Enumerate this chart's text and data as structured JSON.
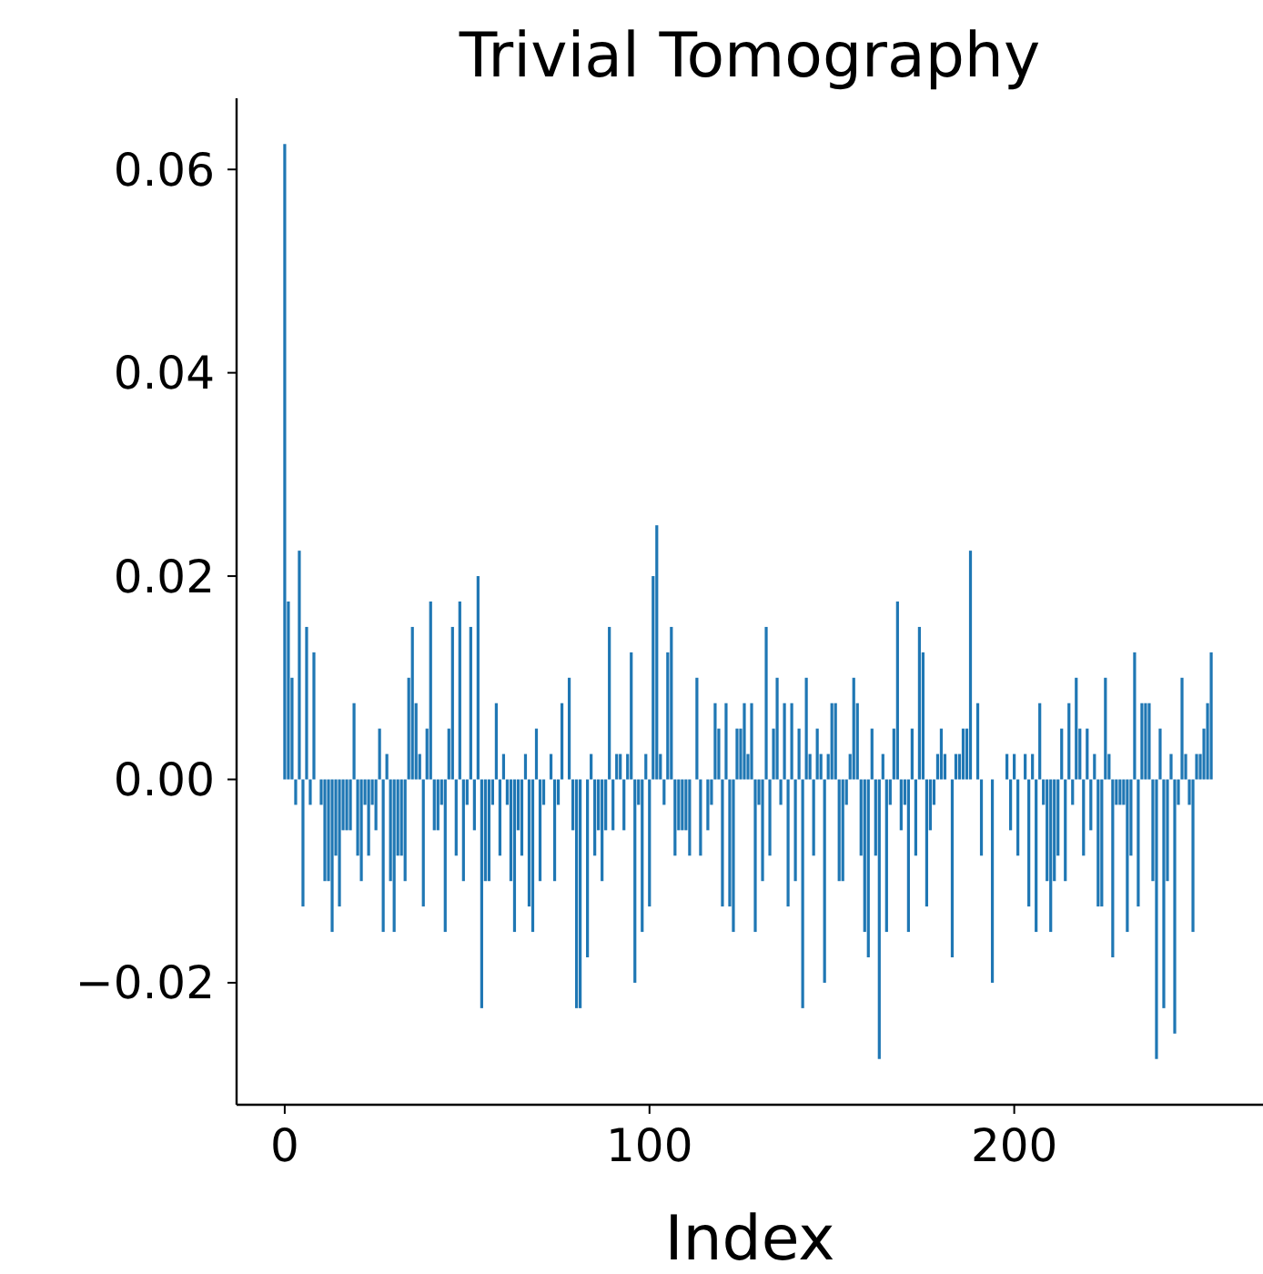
{
  "chart_data": {
    "type": "bar",
    "title": "Trivial Tomography",
    "xlabel": "Index",
    "color": "#1f77b4",
    "x": [
      0,
      1,
      2,
      3,
      4,
      5,
      6,
      7,
      8,
      9,
      10,
      11,
      12,
      13,
      14,
      15,
      16,
      17,
      18,
      19,
      20,
      21,
      22,
      23,
      24,
      25,
      26,
      27,
      28,
      29,
      30,
      31,
      32,
      33,
      34,
      35,
      36,
      37,
      38,
      39,
      40,
      41,
      42,
      43,
      44,
      45,
      46,
      47,
      48,
      49,
      50,
      51,
      52,
      53,
      54,
      55,
      56,
      57,
      58,
      59,
      60,
      61,
      62,
      63,
      64,
      65,
      66,
      67,
      68,
      69,
      70,
      71,
      72,
      73,
      74,
      75,
      76,
      77,
      78,
      79,
      80,
      81,
      82,
      83,
      84,
      85,
      86,
      87,
      88,
      89,
      90,
      91,
      92,
      93,
      94,
      95,
      96,
      97,
      98,
      99,
      100,
      101,
      102,
      103,
      104,
      105,
      106,
      107,
      108,
      109,
      110,
      111,
      112,
      113,
      114,
      115,
      116,
      117,
      118,
      119,
      120,
      121,
      122,
      123,
      124,
      125,
      126,
      127,
      128,
      129,
      130,
      131,
      132,
      133,
      134,
      135,
      136,
      137,
      138,
      139,
      140,
      141,
      142,
      143,
      144,
      145,
      146,
      147,
      148,
      149,
      150,
      151,
      152,
      153,
      154,
      155,
      156,
      157,
      158,
      159,
      160,
      161,
      162,
      163,
      164,
      165,
      166,
      167,
      168,
      169,
      170,
      171,
      172,
      173,
      174,
      175,
      176,
      177,
      178,
      179,
      180,
      181,
      182,
      183,
      184,
      185,
      186,
      187,
      188,
      189,
      190,
      191,
      192,
      193,
      194,
      195,
      196,
      197,
      198,
      199,
      200,
      201,
      202,
      203,
      204,
      205,
      206,
      207,
      208,
      209,
      210,
      211,
      212,
      213,
      214,
      215,
      216,
      217,
      218,
      219,
      220,
      221,
      222,
      223,
      224,
      225,
      226,
      227,
      228,
      229,
      230,
      231,
      232,
      233,
      234,
      235,
      236,
      237,
      238,
      239,
      240,
      241,
      242,
      243,
      244,
      245,
      246,
      247,
      248,
      249,
      250,
      251,
      252,
      253,
      254,
      255
    ],
    "values": [
      0.0625,
      0.0175,
      0.01,
      -0.0025,
      0.0225,
      -0.0125,
      0.015,
      -0.0025,
      0.0125,
      0,
      -0.0025,
      -0.01,
      -0.01,
      -0.015,
      -0.0075,
      -0.0125,
      -0.005,
      -0.005,
      -0.005,
      0.0075,
      -0.0075,
      -0.01,
      -0.0025,
      -0.0075,
      -0.0025,
      -0.005,
      0.005,
      -0.015,
      0.0025,
      -0.01,
      -0.015,
      -0.0075,
      -0.0075,
      -0.01,
      0.01,
      0.015,
      0.0075,
      0.0025,
      -0.0125,
      0.005,
      0.0175,
      -0.005,
      -0.005,
      -0.0025,
      -0.015,
      0.005,
      0.015,
      -0.0075,
      0.0175,
      -0.01,
      -0.0025,
      0.015,
      -0.005,
      0.02,
      -0.0225,
      -0.01,
      -0.01,
      -0.0025,
      0.0075,
      -0.0075,
      0.0025,
      -0.0025,
      -0.01,
      -0.015,
      -0.005,
      -0.0075,
      0.0025,
      -0.0125,
      -0.015,
      0.005,
      -0.01,
      -0.0025,
      0,
      0.0025,
      -0.01,
      -0.0025,
      0.0075,
      0,
      0.01,
      -0.005,
      -0.0225,
      -0.0225,
      0,
      -0.0175,
      0.0025,
      -0.0075,
      -0.005,
      -0.01,
      -0.005,
      0.015,
      -0.005,
      0.0025,
      0.0025,
      -0.005,
      0.0025,
      0.0125,
      -0.02,
      -0.0025,
      -0.015,
      0.0025,
      -0.0125,
      0.02,
      0.025,
      0.0025,
      -0.0025,
      0.0125,
      0.015,
      -0.0075,
      -0.005,
      -0.005,
      -0.005,
      -0.0075,
      0,
      0.01,
      -0.0075,
      0,
      -0.005,
      -0.0025,
      0.0075,
      0.005,
      -0.0125,
      0.0075,
      -0.0125,
      -0.015,
      0.005,
      0.005,
      0.0075,
      0.0025,
      0.0075,
      -0.015,
      -0.0025,
      -0.01,
      0.015,
      -0.0075,
      0.005,
      0.01,
      -0.0025,
      0.0075,
      -0.0125,
      0.0075,
      -0.01,
      0.005,
      -0.0225,
      0.01,
      0.0025,
      -0.0075,
      0.005,
      0.0025,
      -0.02,
      0.0025,
      0.0075,
      0.0075,
      -0.01,
      -0.01,
      -0.0025,
      0.0025,
      0.01,
      0.0075,
      -0.0075,
      -0.015,
      -0.0175,
      0.005,
      -0.0075,
      -0.0275,
      0.0025,
      -0.015,
      -0.0025,
      0.005,
      0.0175,
      -0.005,
      -0.0025,
      -0.015,
      0.005,
      -0.0075,
      0.015,
      0.0125,
      -0.0125,
      -0.005,
      -0.0025,
      0.0025,
      0.005,
      0.0025,
      0,
      -0.0175,
      0.0025,
      0.0025,
      0.005,
      0.005,
      0.0225,
      0,
      0.0075,
      -0.0075,
      0,
      0,
      -0.02,
      0,
      0,
      0,
      0.0025,
      -0.005,
      0.0025,
      -0.0075,
      0,
      0.0025,
      -0.0125,
      0.0025,
      -0.015,
      0.0075,
      -0.0025,
      -0.01,
      -0.015,
      -0.01,
      -0.0075,
      0.005,
      -0.01,
      0.0075,
      -0.0025,
      0.01,
      0.005,
      -0.0075,
      0.005,
      -0.005,
      0.0025,
      -0.0125,
      -0.0125,
      0.01,
      0.0025,
      -0.0175,
      -0.0025,
      -0.0025,
      -0.0025,
      -0.015,
      -0.0075,
      0.0125,
      -0.0125,
      0.0075,
      0.0075,
      0.0075,
      -0.01,
      -0.0275,
      0.005,
      -0.0225,
      -0.01,
      0.0025,
      -0.025,
      -0.0025,
      0.01,
      0.0025,
      -0.0025,
      -0.015,
      0.0025,
      0.0025,
      0.005,
      0.0075,
      0.0125,
      0
    ],
    "xlim": [
      -13.2,
      268.2
    ],
    "ylim": [
      -0.032,
      0.067
    ],
    "xticks": [
      0,
      100,
      200
    ],
    "yticks": [
      {
        "value": -0.02,
        "label": "−0.02"
      },
      {
        "value": 0,
        "label": "0.00"
      },
      {
        "value": 0.02,
        "label": "0.02"
      },
      {
        "value": 0.04,
        "label": "0.04"
      },
      {
        "value": 0.06,
        "label": "0.06"
      }
    ]
  }
}
